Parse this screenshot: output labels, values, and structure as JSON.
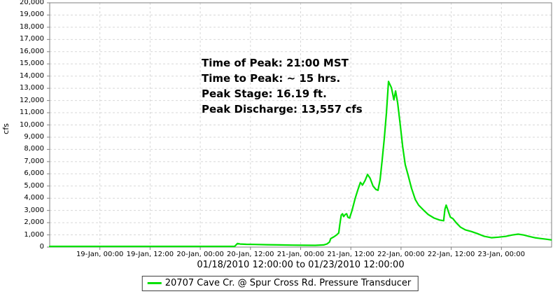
{
  "chart_data": {
    "type": "line",
    "title": "",
    "ylabel": "cfs",
    "xlabel": "01/18/2010 12:00:00 to 01/23/2010 12:00:00",
    "x_start": "01/18/2010 12:00:00",
    "x_end": "01/23/2010 12:00:00",
    "x_range_hours": [
      0,
      120
    ],
    "ylim": [
      0,
      20000
    ],
    "grid": "dashed",
    "background_color": "#ffffff",
    "gridline_color": "#d7d7d7",
    "frame_color": "#7f7f7f",
    "x_ticks": [
      {
        "t": 12,
        "label": "19-Jan, 00:00"
      },
      {
        "t": 24,
        "label": "19-Jan, 12:00"
      },
      {
        "t": 36,
        "label": "20-Jan, 00:00"
      },
      {
        "t": 48,
        "label": "20-Jan, 12:00"
      },
      {
        "t": 60,
        "label": "21-Jan, 00:00"
      },
      {
        "t": 72,
        "label": "21-Jan, 12:00"
      },
      {
        "t": 84,
        "label": "22-Jan, 00:00"
      },
      {
        "t": 96,
        "label": "22-Jan, 12:00"
      },
      {
        "t": 108,
        "label": "23-Jan, 00:00"
      }
    ],
    "y_ticks": [
      {
        "v": 0,
        "label": "0"
      },
      {
        "v": 1000,
        "label": "1,000"
      },
      {
        "v": 2000,
        "label": "2,000"
      },
      {
        "v": 3000,
        "label": "3,000"
      },
      {
        "v": 4000,
        "label": "4,000"
      },
      {
        "v": 5000,
        "label": "5,000"
      },
      {
        "v": 6000,
        "label": "6,000"
      },
      {
        "v": 7000,
        "label": "7,000"
      },
      {
        "v": 8000,
        "label": "8,000"
      },
      {
        "v": 9000,
        "label": "9,000"
      },
      {
        "v": 10000,
        "label": "10,000"
      },
      {
        "v": 11000,
        "label": "11,000"
      },
      {
        "v": 12000,
        "label": "12,000"
      },
      {
        "v": 13000,
        "label": "13,000"
      },
      {
        "v": 14000,
        "label": "14,000"
      },
      {
        "v": 15000,
        "label": "15,000"
      },
      {
        "v": 16000,
        "label": "16,000"
      },
      {
        "v": 17000,
        "label": "17,000"
      },
      {
        "v": 18000,
        "label": "18,000"
      },
      {
        "v": 19000,
        "label": "19,000"
      },
      {
        "v": 20000,
        "label": "20,000"
      }
    ],
    "series": [
      {
        "name": "20707 Cave Cr. @ Spur Cross Rd. Pressure Transducer",
        "color": "#00e100",
        "points_t_hours_cfs": [
          [
            0,
            60
          ],
          [
            6,
            55
          ],
          [
            12,
            55
          ],
          [
            18,
            55
          ],
          [
            24,
            55
          ],
          [
            30,
            55
          ],
          [
            36,
            55
          ],
          [
            40,
            55
          ],
          [
            44.2,
            60
          ],
          [
            44.9,
            300
          ],
          [
            45.5,
            255
          ],
          [
            47,
            230
          ],
          [
            49,
            215
          ],
          [
            52,
            195
          ],
          [
            55,
            175
          ],
          [
            58,
            160
          ],
          [
            61,
            150
          ],
          [
            63.5,
            145
          ],
          [
            65.5,
            175
          ],
          [
            66.3,
            260
          ],
          [
            66.9,
            420
          ],
          [
            67.2,
            700
          ],
          [
            67.9,
            830
          ],
          [
            68.6,
            1000
          ],
          [
            69.1,
            1160
          ],
          [
            69.4,
            1950
          ],
          [
            69.7,
            2620
          ],
          [
            70.0,
            2730
          ],
          [
            70.3,
            2500
          ],
          [
            70.7,
            2680
          ],
          [
            71.0,
            2730
          ],
          [
            71.3,
            2440
          ],
          [
            71.7,
            2380
          ],
          [
            72.3,
            3020
          ],
          [
            73.0,
            3950
          ],
          [
            73.7,
            4720
          ],
          [
            74.3,
            5300
          ],
          [
            74.8,
            5080
          ],
          [
            75.4,
            5450
          ],
          [
            76.0,
            5950
          ],
          [
            76.6,
            5640
          ],
          [
            77.3,
            5000
          ],
          [
            78.0,
            4720
          ],
          [
            78.5,
            4650
          ],
          [
            79.0,
            5520
          ],
          [
            79.5,
            7150
          ],
          [
            80.0,
            8900
          ],
          [
            80.5,
            10950
          ],
          [
            81.0,
            13557
          ],
          [
            81.7,
            13050
          ],
          [
            82.3,
            12050
          ],
          [
            82.7,
            12780
          ],
          [
            83.2,
            11800
          ],
          [
            83.8,
            10050
          ],
          [
            84.4,
            8200
          ],
          [
            85.0,
            6750
          ],
          [
            85.7,
            5870
          ],
          [
            86.5,
            4830
          ],
          [
            87.4,
            3900
          ],
          [
            88.2,
            3440
          ],
          [
            89.4,
            3020
          ],
          [
            90.5,
            2670
          ],
          [
            91.9,
            2380
          ],
          [
            93.2,
            2220
          ],
          [
            94.2,
            2160
          ],
          [
            94.5,
            3100
          ],
          [
            94.8,
            3440
          ],
          [
            95.1,
            3140
          ],
          [
            95.5,
            2730
          ],
          [
            95.8,
            2450
          ],
          [
            96.4,
            2330
          ],
          [
            97.2,
            1990
          ],
          [
            98.2,
            1640
          ],
          [
            99.4,
            1410
          ],
          [
            100.8,
            1280
          ],
          [
            102.3,
            1100
          ],
          [
            103.9,
            880
          ],
          [
            105.6,
            770
          ],
          [
            107.3,
            815
          ],
          [
            109.0,
            875
          ],
          [
            110.6,
            990
          ],
          [
            112.0,
            1060
          ],
          [
            113.3,
            990
          ],
          [
            114.6,
            875
          ],
          [
            116.0,
            770
          ],
          [
            117.3,
            705
          ],
          [
            118.7,
            645
          ],
          [
            119.9,
            590
          ]
        ]
      }
    ],
    "annotation": {
      "lines": [
        "Time of Peak: 21:00 MST",
        "Time to Peak: ~ 15 hrs.",
        "Peak Stage: 16.19 ft.",
        "Peak Discharge: 13,557 cfs"
      ]
    },
    "legend_position": "bottom-center"
  },
  "legend": {
    "label": "20707 Cave Cr. @ Spur Cross Rd. Pressure Transducer",
    "swatch_color": "#00e100"
  }
}
